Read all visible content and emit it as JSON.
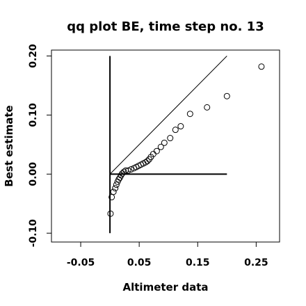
{
  "chart_data": {
    "type": "scatter",
    "title": "qq plot BE, time step no. 13",
    "xlabel": "Altimeter data",
    "ylabel": "Best estimate",
    "xlim": [
      -0.1,
      0.29
    ],
    "ylim": [
      -0.115,
      0.21
    ],
    "xticks": [
      -0.05,
      0.05,
      0.15,
      0.25
    ],
    "xtick_labels": [
      "-0.05",
      "0.05",
      "0.15",
      "0.25"
    ],
    "yticks": [
      -0.1,
      0.0,
      0.1,
      0.2
    ],
    "ytick_labels": [
      "-0.10",
      "0.00",
      "0.10",
      "0.20"
    ],
    "grid": false,
    "legend": "none",
    "points": [
      {
        "x": 0.001,
        "y": -0.067
      },
      {
        "x": 0.003,
        "y": -0.039
      },
      {
        "x": 0.006,
        "y": -0.03
      },
      {
        "x": 0.009,
        "y": -0.024
      },
      {
        "x": 0.011,
        "y": -0.018
      },
      {
        "x": 0.013,
        "y": -0.013
      },
      {
        "x": 0.015,
        "y": -0.009
      },
      {
        "x": 0.017,
        "y": -0.006
      },
      {
        "x": 0.019,
        "y": -0.002
      },
      {
        "x": 0.021,
        "y": 0.001
      },
      {
        "x": 0.024,
        "y": 0.004
      },
      {
        "x": 0.027,
        "y": 0.006
      },
      {
        "x": 0.031,
        "y": 0.006
      },
      {
        "x": 0.036,
        "y": 0.008
      },
      {
        "x": 0.041,
        "y": 0.01
      },
      {
        "x": 0.045,
        "y": 0.012
      },
      {
        "x": 0.049,
        "y": 0.014
      },
      {
        "x": 0.053,
        "y": 0.016
      },
      {
        "x": 0.057,
        "y": 0.018
      },
      {
        "x": 0.061,
        "y": 0.02
      },
      {
        "x": 0.064,
        "y": 0.022
      },
      {
        "x": 0.067,
        "y": 0.025
      },
      {
        "x": 0.07,
        "y": 0.029
      },
      {
        "x": 0.074,
        "y": 0.034
      },
      {
        "x": 0.08,
        "y": 0.039
      },
      {
        "x": 0.087,
        "y": 0.046
      },
      {
        "x": 0.093,
        "y": 0.053
      },
      {
        "x": 0.103,
        "y": 0.061
      },
      {
        "x": 0.112,
        "y": 0.075
      },
      {
        "x": 0.121,
        "y": 0.081
      },
      {
        "x": 0.137,
        "y": 0.102
      },
      {
        "x": 0.166,
        "y": 0.113
      },
      {
        "x": 0.2,
        "y": 0.132
      },
      {
        "x": 0.259,
        "y": 0.182
      }
    ],
    "reference_lines": [
      {
        "x": [
          0.0,
          0.2
        ],
        "y": [
          0.0,
          0.2
        ]
      },
      {
        "x": [
          0.0,
          0.2
        ],
        "y": [
          0.0,
          0.0
        ]
      },
      {
        "x": [
          0.0,
          0.0
        ],
        "y": [
          -0.1,
          0.2
        ]
      }
    ]
  }
}
